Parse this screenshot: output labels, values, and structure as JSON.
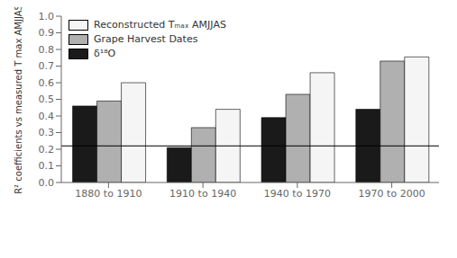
{
  "chart_data": {
    "type": "bar",
    "ylabel": "R² coefficients vs measured T max AMJJAS",
    "categories": [
      "1880 to 1910",
      "1910 to 1940",
      "1940 to 1970",
      "1970 to 2000"
    ],
    "series": [
      {
        "name": "δ¹⁸O",
        "color": "#1a1a1a",
        "values": [
          0.46,
          0.21,
          0.39,
          0.44
        ]
      },
      {
        "name": "Grape Harvest Dates",
        "color": "#b0b0b0",
        "values": [
          0.49,
          0.33,
          0.53,
          0.73
        ]
      },
      {
        "name": "Reconstructed Tₘₐₓ AMJJAS",
        "color": "#f5f5f5",
        "values": [
          0.6,
          0.44,
          0.66,
          0.755
        ]
      }
    ],
    "ylim": [
      0.0,
      1.0
    ],
    "yticks": [
      {
        "value": 0.0,
        "label": "0.0"
      },
      0.1,
      0.2,
      0.3,
      0.4,
      0.5,
      0.6,
      0.7,
      0.8,
      0.9,
      {
        "value": 1.0,
        "label": "1.0"
      }
    ],
    "hline": 0.22,
    "legend": "upper left",
    "grid": false
  }
}
